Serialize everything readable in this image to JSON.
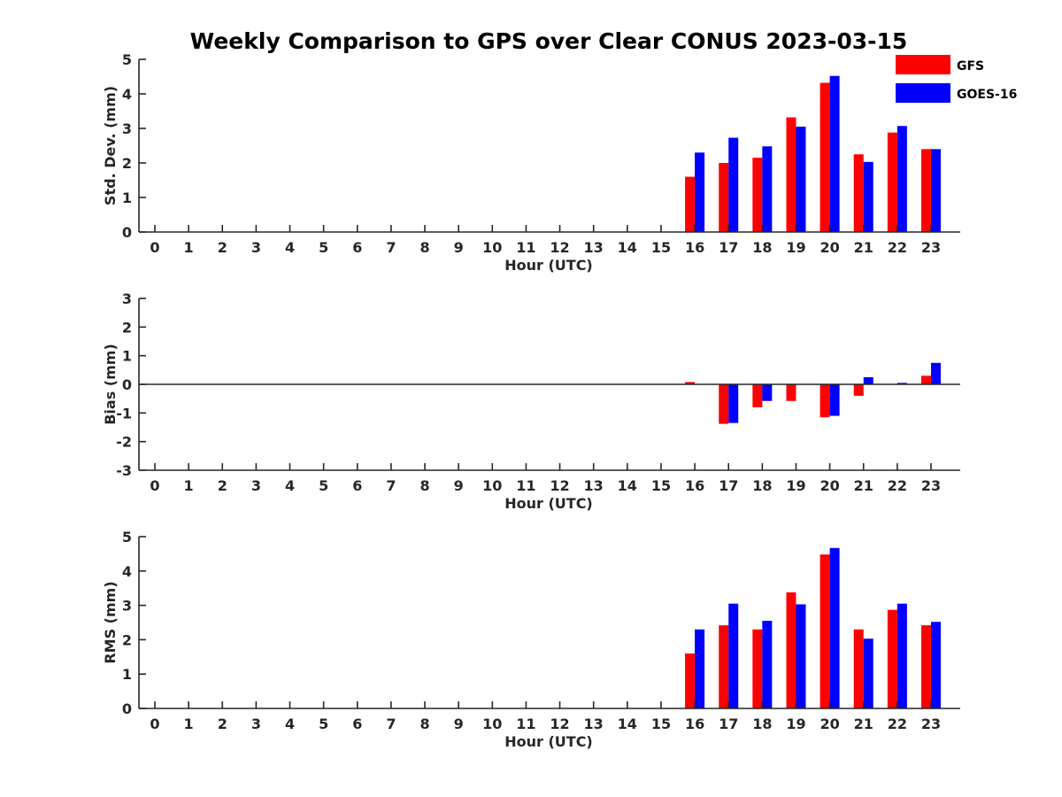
{
  "title": "Weekly Comparison to GPS over Clear CONUS 2023-03-15",
  "legend": {
    "placement": "top-right",
    "entries": [
      {
        "name": "GFS",
        "color": "#ff0000"
      },
      {
        "name": "GOES-16",
        "color": "#0000ff"
      }
    ]
  },
  "chart_data": [
    {
      "type": "bar",
      "title": "Weekly Comparison to GPS over Clear CONUS 2023-03-15",
      "xlabel": "Hour (UTC)",
      "ylabel": "Std. Dev. (mm)",
      "ylim": [
        0,
        5
      ],
      "yticks": [
        "0",
        "1",
        "2",
        "3",
        "4",
        "5"
      ],
      "grid": false,
      "categories": [
        "0",
        "1",
        "2",
        "3",
        "4",
        "5",
        "6",
        "7",
        "8",
        "9",
        "10",
        "11",
        "12",
        "13",
        "14",
        "15",
        "16",
        "17",
        "18",
        "19",
        "20",
        "21",
        "22",
        "23"
      ],
      "series": [
        {
          "name": "GFS",
          "color": "#ff0000",
          "values": [
            null,
            null,
            null,
            null,
            null,
            null,
            null,
            null,
            null,
            null,
            null,
            null,
            null,
            null,
            null,
            null,
            1.6,
            2.0,
            2.15,
            3.32,
            4.32,
            2.25,
            2.88,
            2.4
          ]
        },
        {
          "name": "GOES-16",
          "color": "#0000ff",
          "values": [
            null,
            null,
            null,
            null,
            null,
            null,
            null,
            null,
            null,
            null,
            null,
            null,
            null,
            null,
            null,
            null,
            2.3,
            2.73,
            2.48,
            3.05,
            4.52,
            2.03,
            3.07,
            2.4
          ]
        }
      ]
    },
    {
      "type": "bar",
      "xlabel": "Hour (UTC)",
      "ylabel": "Bias (mm)",
      "ylim": [
        -3,
        3
      ],
      "yticks": [
        "-3",
        "-2",
        "-1",
        "0",
        "1",
        "2",
        "3"
      ],
      "grid": false,
      "zero_line": true,
      "categories": [
        "0",
        "1",
        "2",
        "3",
        "4",
        "5",
        "6",
        "7",
        "8",
        "9",
        "10",
        "11",
        "12",
        "13",
        "14",
        "15",
        "16",
        "17",
        "18",
        "19",
        "20",
        "21",
        "22",
        "23"
      ],
      "series": [
        {
          "name": "GFS",
          "color": "#ff0000",
          "values": [
            null,
            null,
            null,
            null,
            null,
            null,
            null,
            null,
            null,
            null,
            null,
            null,
            null,
            null,
            null,
            null,
            0.08,
            -1.38,
            -0.8,
            -0.58,
            -1.15,
            -0.4,
            0.0,
            0.3
          ]
        },
        {
          "name": "GOES-16",
          "color": "#0000ff",
          "values": [
            null,
            null,
            null,
            null,
            null,
            null,
            null,
            null,
            null,
            null,
            null,
            null,
            null,
            null,
            null,
            null,
            0.0,
            -1.35,
            -0.58,
            0.0,
            -1.1,
            0.25,
            0.05,
            0.75
          ]
        }
      ]
    },
    {
      "type": "bar",
      "xlabel": "Hour (UTC)",
      "ylabel": "RMS (mm)",
      "ylim": [
        0,
        5
      ],
      "yticks": [
        "0",
        "1",
        "2",
        "3",
        "4",
        "5"
      ],
      "grid": false,
      "categories": [
        "0",
        "1",
        "2",
        "3",
        "4",
        "5",
        "6",
        "7",
        "8",
        "9",
        "10",
        "11",
        "12",
        "13",
        "14",
        "15",
        "16",
        "17",
        "18",
        "19",
        "20",
        "21",
        "22",
        "23"
      ],
      "series": [
        {
          "name": "GFS",
          "color": "#ff0000",
          "values": [
            null,
            null,
            null,
            null,
            null,
            null,
            null,
            null,
            null,
            null,
            null,
            null,
            null,
            null,
            null,
            null,
            1.6,
            2.42,
            2.3,
            3.38,
            4.48,
            2.3,
            2.87,
            2.42
          ]
        },
        {
          "name": "GOES-16",
          "color": "#0000ff",
          "values": [
            null,
            null,
            null,
            null,
            null,
            null,
            null,
            null,
            null,
            null,
            null,
            null,
            null,
            null,
            null,
            null,
            2.3,
            3.05,
            2.55,
            3.03,
            4.67,
            2.03,
            3.05,
            2.52
          ]
        }
      ]
    }
  ]
}
